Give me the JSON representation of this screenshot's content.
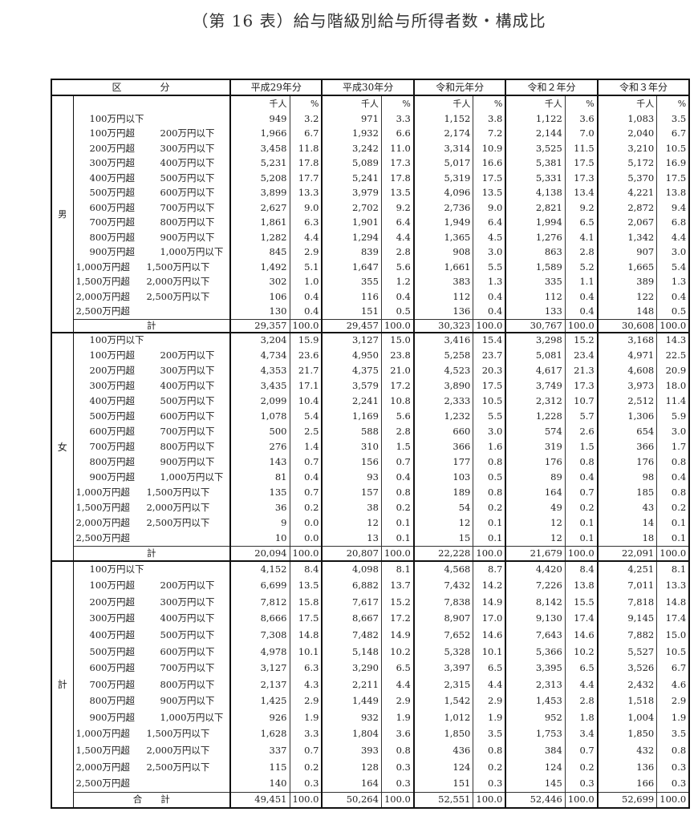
{
  "title": "（第 16 表）給与階級別給与所得者数・構成比",
  "header": {
    "category": "区　　　　分",
    "years": [
      "平成29年分",
      "平成30年分",
      "令和元年分",
      "令和２年分",
      "令和３年分"
    ]
  },
  "units": {
    "count": "千人",
    "percent": "%"
  },
  "brackets": [
    [
      "100万円以下",
      ""
    ],
    [
      "100万円超",
      "200万円以下"
    ],
    [
      "200万円超",
      "300万円以下"
    ],
    [
      "300万円超",
      "400万円以下"
    ],
    [
      "400万円超",
      "500万円以下"
    ],
    [
      "500万円超",
      "600万円以下"
    ],
    [
      "600万円超",
      "700万円以下"
    ],
    [
      "700万円超",
      "800万円以下"
    ],
    [
      "800万円超",
      "900万円以下"
    ],
    [
      "900万円超",
      "1,000万円以下"
    ],
    [
      "1,000万円超",
      "1,500万円以下"
    ],
    [
      "1,500万円超",
      "2,000万円以下"
    ],
    [
      "2,000万円超",
      "2,500万円以下"
    ],
    [
      "2,500万円超",
      ""
    ]
  ],
  "sections": [
    {
      "name": "男",
      "total_label": "計",
      "rows": [
        [
          "949",
          "3.2",
          "971",
          "3.3",
          "1,152",
          "3.8",
          "1,122",
          "3.6",
          "1,083",
          "3.5"
        ],
        [
          "1,966",
          "6.7",
          "1,932",
          "6.6",
          "2,174",
          "7.2",
          "2,144",
          "7.0",
          "2,040",
          "6.7"
        ],
        [
          "3,458",
          "11.8",
          "3,242",
          "11.0",
          "3,314",
          "10.9",
          "3,525",
          "11.5",
          "3,210",
          "10.5"
        ],
        [
          "5,231",
          "17.8",
          "5,089",
          "17.3",
          "5,017",
          "16.6",
          "5,381",
          "17.5",
          "5,172",
          "16.9"
        ],
        [
          "5,208",
          "17.7",
          "5,241",
          "17.8",
          "5,319",
          "17.5",
          "5,331",
          "17.3",
          "5,370",
          "17.5"
        ],
        [
          "3,899",
          "13.3",
          "3,979",
          "13.5",
          "4,096",
          "13.5",
          "4,138",
          "13.4",
          "4,221",
          "13.8"
        ],
        [
          "2,627",
          "9.0",
          "2,702",
          "9.2",
          "2,736",
          "9.0",
          "2,821",
          "9.2",
          "2,872",
          "9.4"
        ],
        [
          "1,861",
          "6.3",
          "1,901",
          "6.4",
          "1,949",
          "6.4",
          "1,994",
          "6.5",
          "2,067",
          "6.8"
        ],
        [
          "1,282",
          "4.4",
          "1,294",
          "4.4",
          "1,365",
          "4.5",
          "1,276",
          "4.1",
          "1,342",
          "4.4"
        ],
        [
          "845",
          "2.9",
          "839",
          "2.8",
          "908",
          "3.0",
          "863",
          "2.8",
          "907",
          "3.0"
        ],
        [
          "1,492",
          "5.1",
          "1,647",
          "5.6",
          "1,661",
          "5.5",
          "1,589",
          "5.2",
          "1,665",
          "5.4"
        ],
        [
          "302",
          "1.0",
          "355",
          "1.2",
          "383",
          "1.3",
          "335",
          "1.1",
          "389",
          "1.3"
        ],
        [
          "106",
          "0.4",
          "116",
          "0.4",
          "112",
          "0.4",
          "112",
          "0.4",
          "122",
          "0.4"
        ],
        [
          "130",
          "0.4",
          "151",
          "0.5",
          "136",
          "0.4",
          "133",
          "0.4",
          "148",
          "0.5"
        ]
      ],
      "total": [
        "29,357",
        "100.0",
        "29,457",
        "100.0",
        "30,323",
        "100.0",
        "30,767",
        "100.0",
        "30,608",
        "100.0"
      ]
    },
    {
      "name": "女",
      "total_label": "計",
      "rows": [
        [
          "3,204",
          "15.9",
          "3,127",
          "15.0",
          "3,416",
          "15.4",
          "3,298",
          "15.2",
          "3,168",
          "14.3"
        ],
        [
          "4,734",
          "23.6",
          "4,950",
          "23.8",
          "5,258",
          "23.7",
          "5,081",
          "23.4",
          "4,971",
          "22.5"
        ],
        [
          "4,353",
          "21.7",
          "4,375",
          "21.0",
          "4,523",
          "20.3",
          "4,617",
          "21.3",
          "4,608",
          "20.9"
        ],
        [
          "3,435",
          "17.1",
          "3,579",
          "17.2",
          "3,890",
          "17.5",
          "3,749",
          "17.3",
          "3,973",
          "18.0"
        ],
        [
          "2,099",
          "10.4",
          "2,241",
          "10.8",
          "2,333",
          "10.5",
          "2,312",
          "10.7",
          "2,512",
          "11.4"
        ],
        [
          "1,078",
          "5.4",
          "1,169",
          "5.6",
          "1,232",
          "5.5",
          "1,228",
          "5.7",
          "1,306",
          "5.9"
        ],
        [
          "500",
          "2.5",
          "588",
          "2.8",
          "660",
          "3.0",
          "574",
          "2.6",
          "654",
          "3.0"
        ],
        [
          "276",
          "1.4",
          "310",
          "1.5",
          "366",
          "1.6",
          "319",
          "1.5",
          "366",
          "1.7"
        ],
        [
          "143",
          "0.7",
          "156",
          "0.7",
          "177",
          "0.8",
          "176",
          "0.8",
          "176",
          "0.8"
        ],
        [
          "81",
          "0.4",
          "93",
          "0.4",
          "103",
          "0.5",
          "89",
          "0.4",
          "98",
          "0.4"
        ],
        [
          "135",
          "0.7",
          "157",
          "0.8",
          "189",
          "0.8",
          "164",
          "0.7",
          "185",
          "0.8"
        ],
        [
          "36",
          "0.2",
          "38",
          "0.2",
          "54",
          "0.2",
          "49",
          "0.2",
          "43",
          "0.2"
        ],
        [
          "9",
          "0.0",
          "12",
          "0.1",
          "12",
          "0.1",
          "12",
          "0.1",
          "14",
          "0.1"
        ],
        [
          "10",
          "0.0",
          "13",
          "0.1",
          "15",
          "0.1",
          "12",
          "0.1",
          "18",
          "0.1"
        ]
      ],
      "total": [
        "20,094",
        "100.0",
        "20,807",
        "100.0",
        "22,228",
        "100.0",
        "21,679",
        "100.0",
        "22,091",
        "100.0"
      ]
    },
    {
      "name": "計",
      "total_label": "合　　計",
      "rows": [
        [
          "4,152",
          "8.4",
          "4,098",
          "8.1",
          "4,568",
          "8.7",
          "4,420",
          "8.4",
          "4,251",
          "8.1"
        ],
        [
          "6,699",
          "13.5",
          "6,882",
          "13.7",
          "7,432",
          "14.2",
          "7,226",
          "13.8",
          "7,011",
          "13.3"
        ],
        [
          "7,812",
          "15.8",
          "7,617",
          "15.2",
          "7,838",
          "14.9",
          "8,142",
          "15.5",
          "7,818",
          "14.8"
        ],
        [
          "8,666",
          "17.5",
          "8,667",
          "17.2",
          "8,907",
          "17.0",
          "9,130",
          "17.4",
          "9,145",
          "17.4"
        ],
        [
          "7,308",
          "14.8",
          "7,482",
          "14.9",
          "7,652",
          "14.6",
          "7,643",
          "14.6",
          "7,882",
          "15.0"
        ],
        [
          "4,978",
          "10.1",
          "5,148",
          "10.2",
          "5,328",
          "10.1",
          "5,366",
          "10.2",
          "5,527",
          "10.5"
        ],
        [
          "3,127",
          "6.3",
          "3,290",
          "6.5",
          "3,397",
          "6.5",
          "3,395",
          "6.5",
          "3,526",
          "6.7"
        ],
        [
          "2,137",
          "4.3",
          "2,211",
          "4.4",
          "2,315",
          "4.4",
          "2,313",
          "4.4",
          "2,432",
          "4.6"
        ],
        [
          "1,425",
          "2.9",
          "1,449",
          "2.9",
          "1,542",
          "2.9",
          "1,453",
          "2.8",
          "1,518",
          "2.9"
        ],
        [
          "926",
          "1.9",
          "932",
          "1.9",
          "1,012",
          "1.9",
          "952",
          "1.8",
          "1,004",
          "1.9"
        ],
        [
          "1,628",
          "3.3",
          "1,804",
          "3.6",
          "1,850",
          "3.5",
          "1,753",
          "3.4",
          "1,850",
          "3.5"
        ],
        [
          "337",
          "0.7",
          "393",
          "0.8",
          "436",
          "0.8",
          "384",
          "0.7",
          "432",
          "0.8"
        ],
        [
          "115",
          "0.2",
          "128",
          "0.3",
          "124",
          "0.2",
          "124",
          "0.2",
          "136",
          "0.3"
        ],
        [
          "140",
          "0.3",
          "164",
          "0.3",
          "151",
          "0.3",
          "145",
          "0.3",
          "166",
          "0.3"
        ]
      ],
      "total": [
        "49,451",
        "100.0",
        "50,264",
        "100.0",
        "52,551",
        "100.0",
        "52,446",
        "100.0",
        "52,699",
        "100.0"
      ]
    }
  ]
}
